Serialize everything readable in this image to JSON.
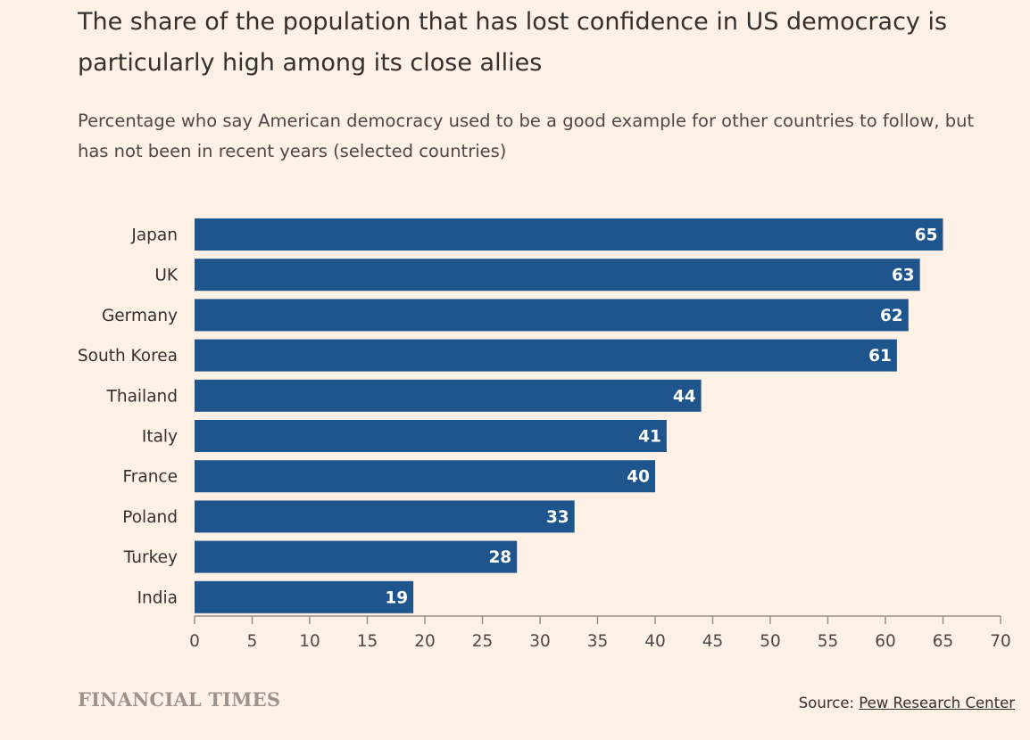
{
  "title": "The share of the population that has lost confidence in US democracy is particularly high among its close allies",
  "subtitle": "Percentage who say American democracy used to be a good example for other countries to follow, but has not been in recent years (selected countries)",
  "brand": "FINANCIAL TIMES",
  "source": {
    "prefix": "Source: ",
    "link_text": "Pew Research Center"
  },
  "colors": {
    "bar": "#1e558c",
    "axis": "#9c8f86",
    "background": "#fff1e5"
  },
  "chart_data": {
    "type": "bar",
    "orientation": "horizontal",
    "categories": [
      "Japan",
      "UK",
      "Germany",
      "South Korea",
      "Thailand",
      "Italy",
      "France",
      "Poland",
      "Turkey",
      "India"
    ],
    "values": [
      65,
      63,
      62,
      61,
      44,
      41,
      40,
      33,
      28,
      19
    ],
    "xlim": [
      0,
      70
    ],
    "xticks": [
      0,
      5,
      10,
      15,
      20,
      25,
      30,
      35,
      40,
      45,
      50,
      55,
      60,
      65,
      70
    ],
    "grid": false,
    "data_labels": true
  }
}
